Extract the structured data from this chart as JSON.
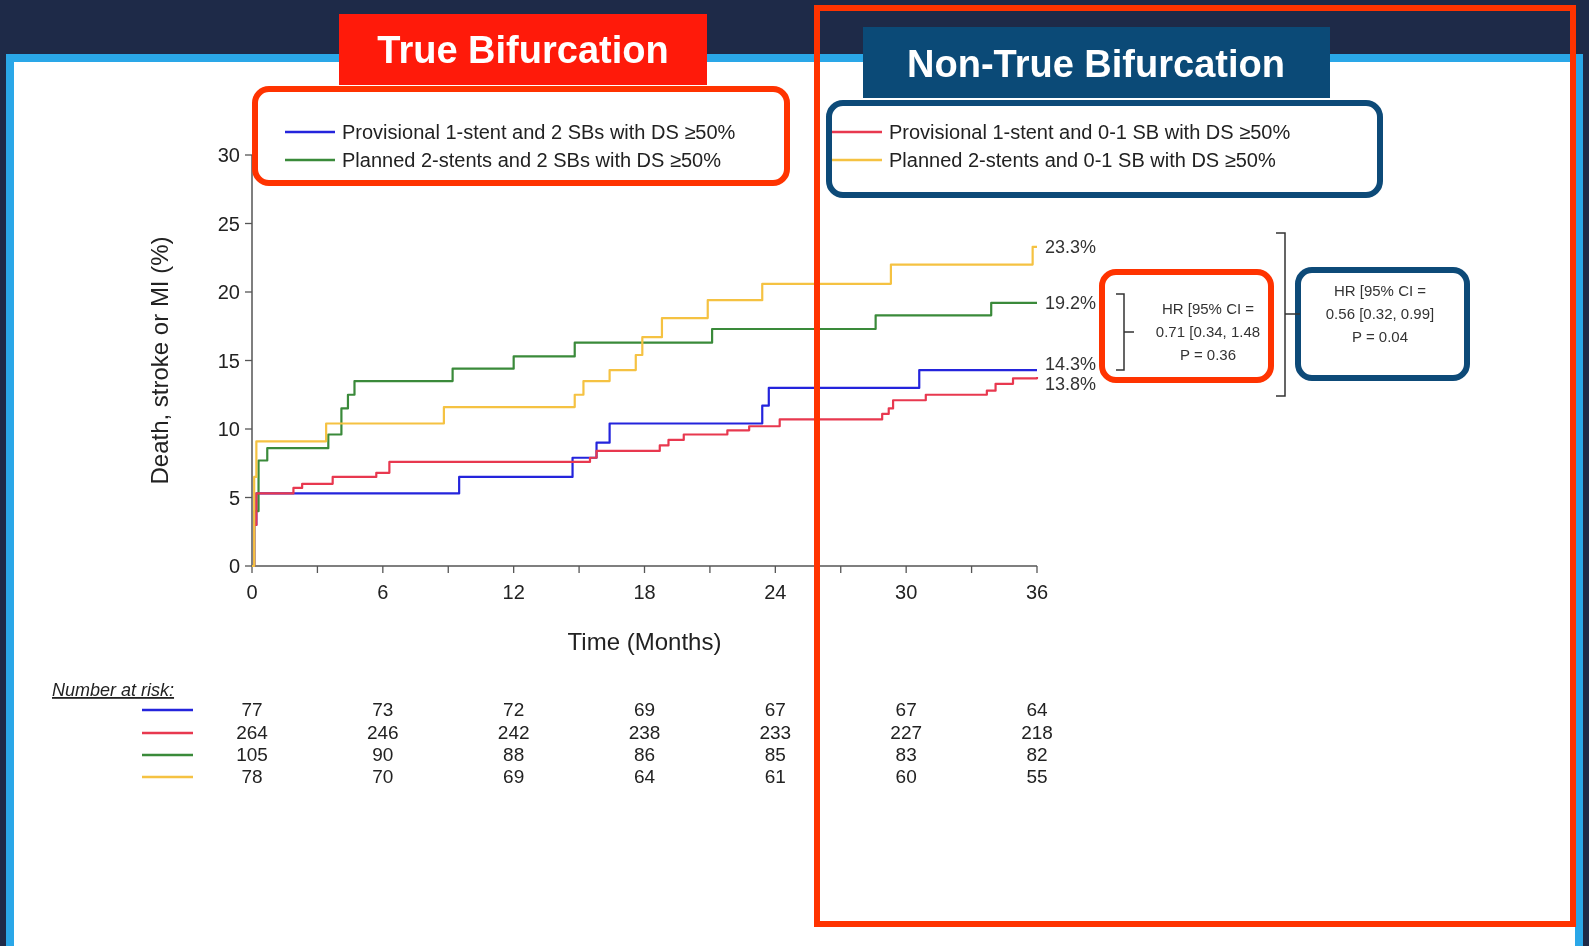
{
  "chart_data": {
    "type": "step",
    "xlabel": "Time (Months)",
    "ylabel": "Death, stroke or MI (%)",
    "xlim": [
      0,
      36
    ],
    "ylim": [
      0,
      30
    ],
    "xticks": [
      0,
      {
        "value": 3,
        "label": null
      },
      6,
      {
        "value": 9,
        "label": null
      },
      12,
      {
        "value": 15,
        "label": null
      },
      18,
      {
        "value": 21,
        "label": null
      },
      24,
      {
        "value": 27,
        "label": null
      },
      30,
      {
        "value": 33,
        "label": null
      },
      36
    ],
    "yticks": [
      0,
      5,
      10,
      15,
      20,
      25,
      30
    ],
    "legend": "top",
    "grid": false,
    "marker": "none",
    "line_style": "solid",
    "series": [
      {
        "name": "Provisional 1-stent and 2 SBs with DS ≥50%",
        "color": "#2424dc",
        "x": [
          0,
          0.1,
          0.2,
          9.5,
          14.7,
          15.8,
          16.4,
          23.4,
          23.7,
          30.6,
          36
        ],
        "values": [
          0,
          3,
          5.3,
          6.5,
          7.9,
          9.0,
          10.4,
          11.7,
          13.0,
          14.3,
          14.3
        ]
      },
      {
        "name": "Planned 2-stents and 2 SBs with DS ≥50%",
        "color": "#3a8a3a",
        "x": [
          0,
          0.1,
          0.3,
          0.7,
          3.5,
          4.1,
          4.4,
          4.7,
          9.2,
          12.0,
          14.8,
          21.1,
          28.6,
          33.9,
          36
        ],
        "values": [
          0,
          4,
          7.7,
          8.6,
          9.6,
          11.5,
          12.5,
          13.5,
          14.4,
          15.3,
          16.3,
          17.3,
          18.3,
          19.2,
          19.2
        ]
      },
      {
        "name": "Provisional 1-stent and 0-1 SB with DS ≥50%",
        "color": "#e8384f",
        "x": [
          0,
          0.1,
          0.2,
          1.9,
          2.3,
          3.7,
          5.7,
          6.3,
          15.5,
          15.8,
          18.7,
          19.1,
          19.8,
          21.8,
          22.8,
          24.2,
          28.9,
          29.2,
          29.4,
          30.9,
          33.7,
          34.1,
          34.9,
          36
        ],
        "values": [
          0,
          3,
          5.3,
          5.7,
          6.0,
          6.5,
          6.8,
          7.6,
          7.9,
          8.4,
          8.8,
          9.2,
          9.6,
          9.9,
          10.2,
          10.7,
          11.1,
          11.5,
          12.1,
          12.5,
          12.8,
          13.3,
          13.7,
          13.8
        ]
      },
      {
        "name": "Planned 2-stents and 0-1 SB with DS ≥50%",
        "color": "#f5c242",
        "x": [
          0,
          0.1,
          0.2,
          3.4,
          8.8,
          14.8,
          15.2,
          16.4,
          17.6,
          17.9,
          18.8,
          20.9,
          23.4,
          29.3,
          35.8,
          36
        ],
        "values": [
          0,
          6.5,
          9.1,
          10.4,
          11.6,
          12.5,
          13.5,
          14.3,
          15.4,
          16.7,
          18.1,
          19.4,
          20.6,
          22.0,
          23.3,
          23.3
        ]
      }
    ],
    "annotations": [
      "True Bifurcation",
      "Non-True Bifurcation",
      "HR [95% CI =",
      "0.71 [0.34, 1.48",
      "P = 0.36",
      "HR [95% CI =",
      "0.56 [0.32, 0.99]",
      "P = 0.04",
      "Number at risk:",
      "77 73 72 69 67 67 64",
      "264 246 242 238 233 227 218",
      "105 90 88 86 85 83 82",
      "78 70 69 64 61 60 55",
      "23.3%",
      "19.2%",
      "14.3%",
      "13.8%"
    ]
  }
}
